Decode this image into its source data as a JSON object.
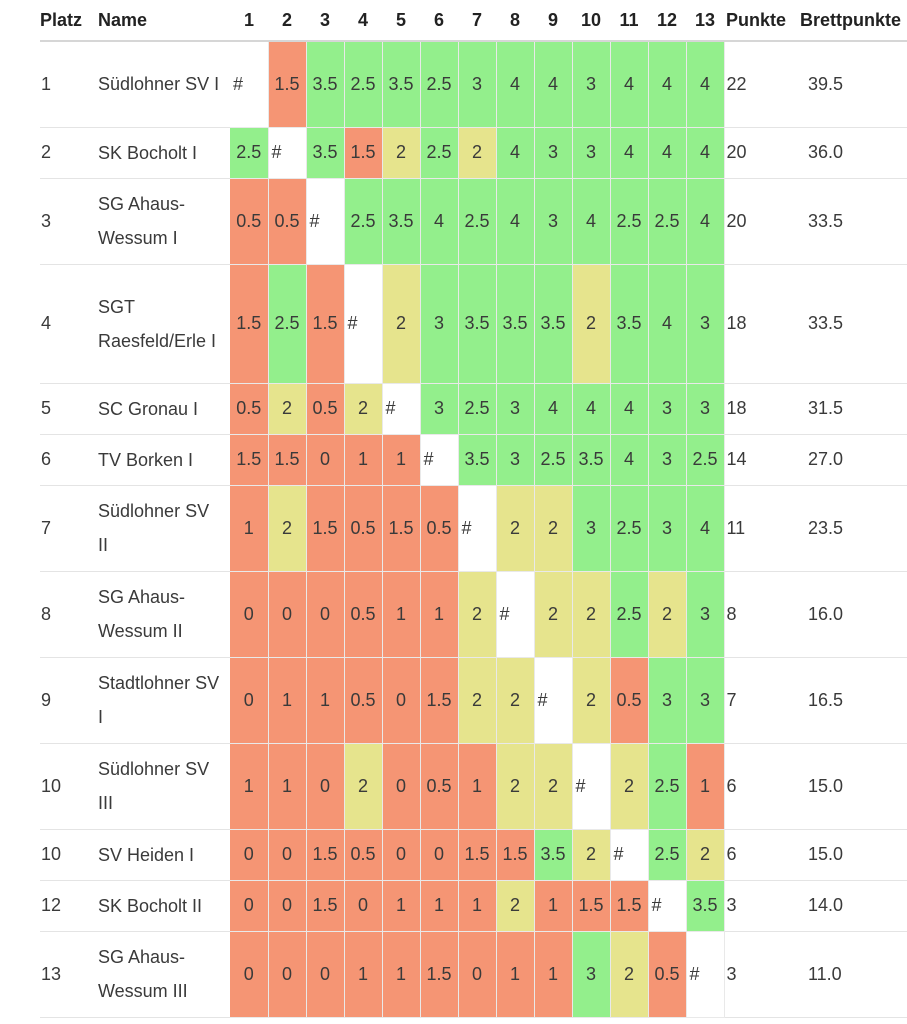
{
  "headers": {
    "platz": "Platz",
    "name": "Name",
    "rounds": [
      "1",
      "2",
      "3",
      "4",
      "5",
      "6",
      "7",
      "8",
      "9",
      "10",
      "11",
      "12",
      "13"
    ],
    "punkte": "Punkte",
    "brettpunkte": "Brettpunkte"
  },
  "colors": {
    "win": "#93ef8c",
    "draw": "#e6e48d",
    "loss": "#f59574",
    "self": "#ffffff"
  },
  "rows": [
    {
      "platz": "1",
      "name": "Südlohner SV I",
      "cells": [
        "#",
        "1.5",
        "3.5",
        "2.5",
        "3.5",
        "2.5",
        "3",
        "4",
        "4",
        "3",
        "4",
        "4",
        "4"
      ],
      "punkte": "22",
      "brett": "39.5"
    },
    {
      "platz": "2",
      "name": "SK Bocholt I",
      "cells": [
        "2.5",
        "#",
        "3.5",
        "1.5",
        "2",
        "2.5",
        "2",
        "4",
        "3",
        "3",
        "4",
        "4",
        "4"
      ],
      "punkte": "20",
      "brett": "36.0"
    },
    {
      "platz": "3",
      "name": "SG Ahaus-Wessum I",
      "cells": [
        "0.5",
        "0.5",
        "#",
        "2.5",
        "3.5",
        "4",
        "2.5",
        "4",
        "3",
        "4",
        "2.5",
        "2.5",
        "4"
      ],
      "punkte": "20",
      "brett": "33.5"
    },
    {
      "platz": "4",
      "name": "SGT Raesfeld/Erle I",
      "cells": [
        "1.5",
        "2.5",
        "1.5",
        "#",
        "2",
        "3",
        "3.5",
        "3.5",
        "3.5",
        "2",
        "3.5",
        "4",
        "3"
      ],
      "punkte": "18",
      "brett": "33.5"
    },
    {
      "platz": "5",
      "name": "SC Gronau I",
      "cells": [
        "0.5",
        "2",
        "0.5",
        "2",
        "#",
        "3",
        "2.5",
        "3",
        "4",
        "4",
        "4",
        "3",
        "3"
      ],
      "punkte": "18",
      "brett": "31.5"
    },
    {
      "platz": "6",
      "name": "TV Borken I",
      "cells": [
        "1.5",
        "1.5",
        "0",
        "1",
        "1",
        "#",
        "3.5",
        "3",
        "2.5",
        "3.5",
        "4",
        "3",
        "2.5"
      ],
      "punkte": "14",
      "brett": "27.0"
    },
    {
      "platz": "7",
      "name": "Südlohner SV II",
      "cells": [
        "1",
        "2",
        "1.5",
        "0.5",
        "1.5",
        "0.5",
        "#",
        "2",
        "2",
        "3",
        "2.5",
        "3",
        "4"
      ],
      "punkte": "11",
      "brett": "23.5"
    },
    {
      "platz": "8",
      "name": "SG Ahaus-Wessum II",
      "cells": [
        "0",
        "0",
        "0",
        "0.5",
        "1",
        "1",
        "2",
        "#",
        "2",
        "2",
        "2.5",
        "2",
        "3"
      ],
      "punkte": "8",
      "brett": "16.0"
    },
    {
      "platz": "9",
      "name": "Stadtlohner SV I",
      "cells": [
        "0",
        "1",
        "1",
        "0.5",
        "0",
        "1.5",
        "2",
        "2",
        "#",
        "2",
        "0.5",
        "3",
        "3"
      ],
      "punkte": "7",
      "brett": "16.5"
    },
    {
      "platz": "10",
      "name": "Südlohner SV III",
      "cells": [
        "1",
        "1",
        "0",
        "2",
        "0",
        "0.5",
        "1",
        "2",
        "2",
        "#",
        "2",
        "2.5",
        "1"
      ],
      "punkte": "6",
      "brett": "15.0"
    },
    {
      "platz": "10",
      "name": "SV Heiden I",
      "cells": [
        "0",
        "0",
        "1.5",
        "0.5",
        "0",
        "0",
        "1.5",
        "1.5",
        "3.5",
        "2",
        "#",
        "2.5",
        "2"
      ],
      "punkte": "6",
      "brett": "15.0"
    },
    {
      "platz": "12",
      "name": "SK Bocholt II",
      "cells": [
        "0",
        "0",
        "1.5",
        "0",
        "1",
        "1",
        "1",
        "2",
        "1",
        "1.5",
        "1.5",
        "#",
        "3.5"
      ],
      "punkte": "3",
      "brett": "14.0"
    },
    {
      "platz": "13",
      "name": "SG Ahaus-Wessum III",
      "cells": [
        "0",
        "0",
        "0",
        "1",
        "1",
        "1.5",
        "0",
        "1",
        "1",
        "3",
        "2",
        "0.5",
        "#"
      ],
      "punkte": "3",
      "brett": "11.0"
    }
  ]
}
